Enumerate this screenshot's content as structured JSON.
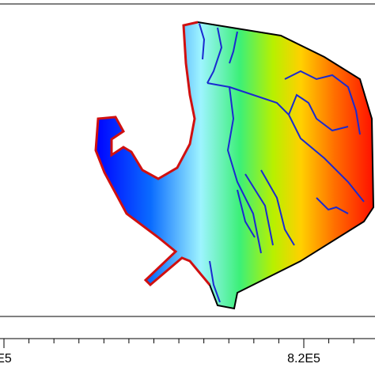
{
  "x_axis": {
    "tick_labels": [
      "E5",
      "8.2E5"
    ]
  }
}
